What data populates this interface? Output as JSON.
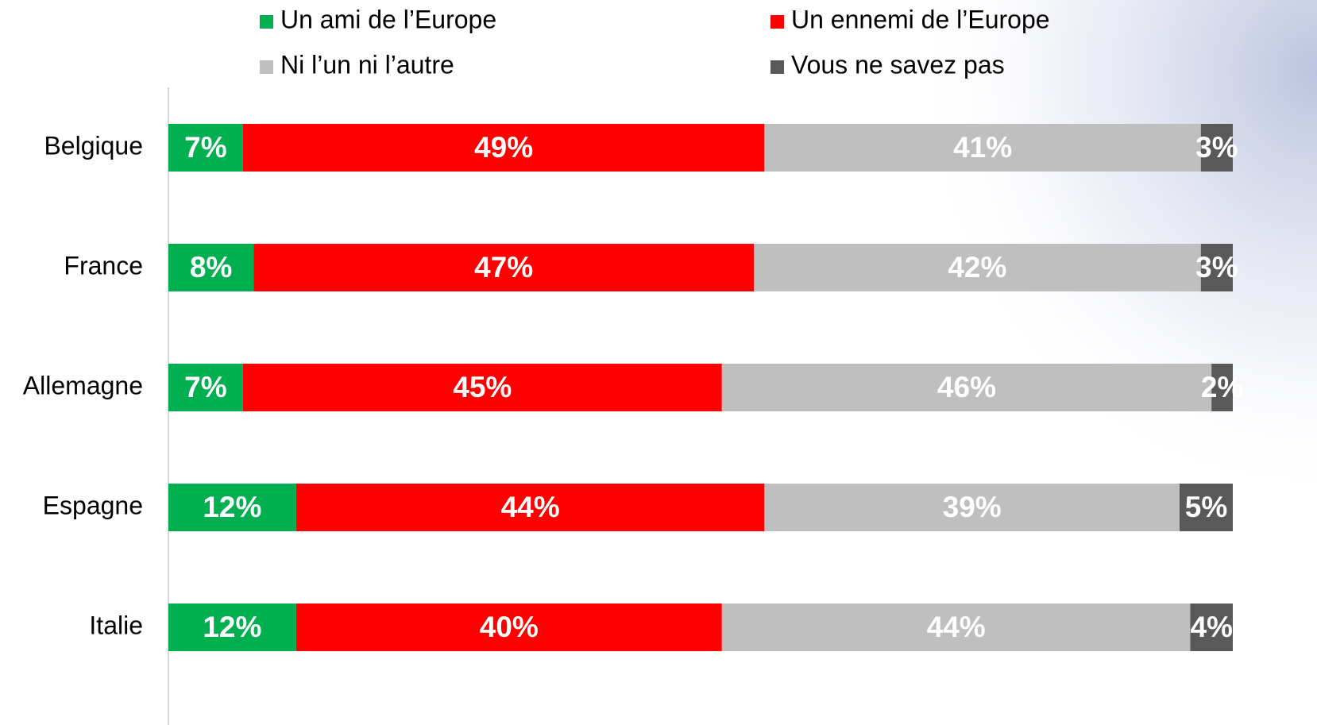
{
  "chart_data": {
    "type": "stacked-barh",
    "categories": [
      "Belgique",
      "France",
      "Allemagne",
      "Espagne",
      "Italie"
    ],
    "series": [
      {
        "name": "Un ami de l’Europe",
        "color": "#00b050",
        "values": [
          7,
          8,
          7,
          12,
          12
        ],
        "value_labels": [
          "7%",
          "8%",
          "7%",
          "12%",
          "12%"
        ]
      },
      {
        "name": "Un ennemi de l’Europe",
        "color": "#ff0000",
        "values": [
          49,
          47,
          45,
          44,
          40
        ],
        "value_labels": [
          "49%",
          "47%",
          "45%",
          "44%",
          "40%"
        ]
      },
      {
        "name": "Ni l’un ni l’autre",
        "color": "#bfbfbf",
        "values": [
          41,
          42,
          46,
          39,
          44
        ],
        "value_labels": [
          "41%",
          "42%",
          "46%",
          "39%",
          "44%"
        ]
      },
      {
        "name": "Vous ne savez pas",
        "color": "#595959",
        "values": [
          3,
          3,
          2,
          5,
          4
        ],
        "value_labels": [
          "3%",
          "3%",
          "2%",
          "5%",
          "4%"
        ]
      }
    ],
    "xlim": [
      0,
      100
    ]
  }
}
